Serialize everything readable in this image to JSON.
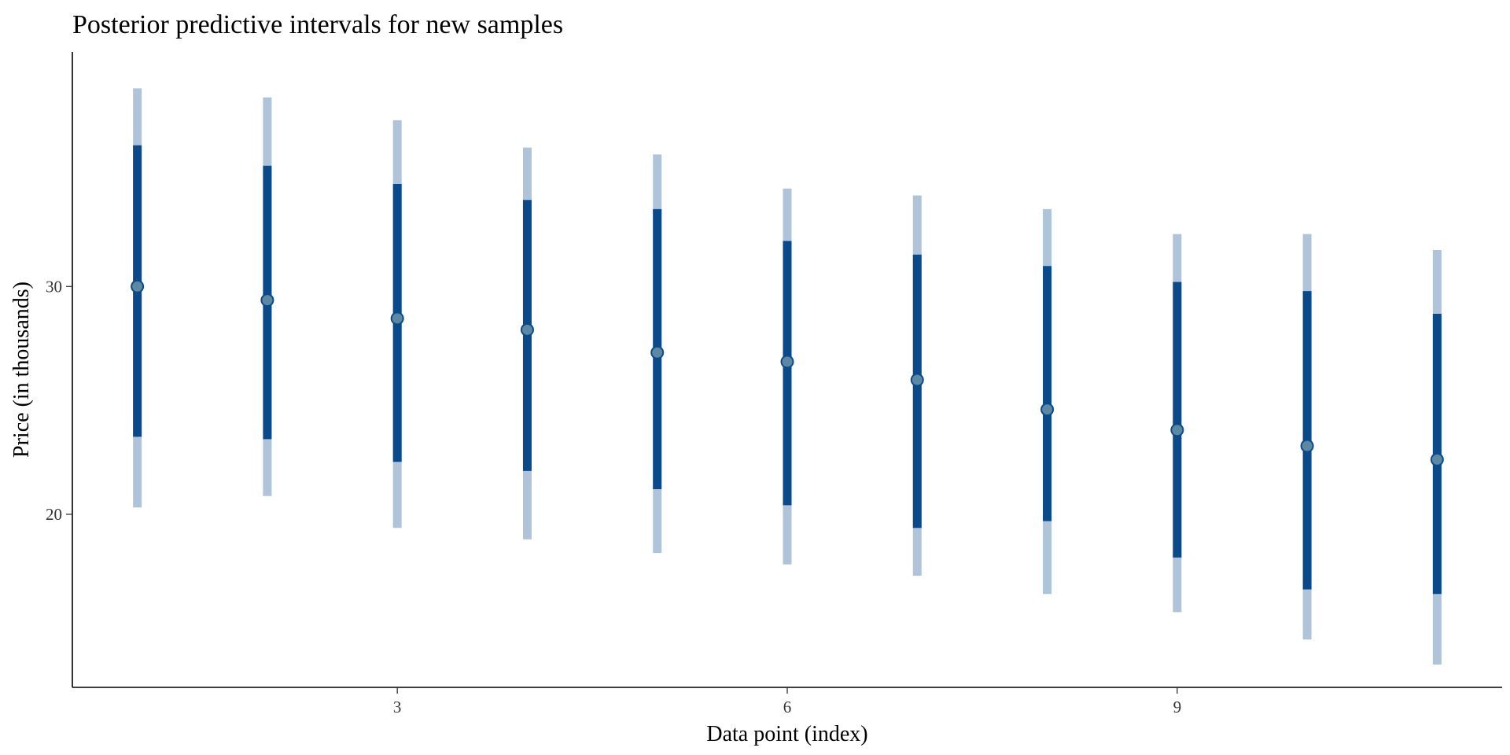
{
  "chart_data": {
    "type": "interval",
    "title": "Posterior predictive intervals for new samples",
    "xlabel": "Data point (index)",
    "ylabel": "Price (in thousands)",
    "xlim": [
      0.5,
      11.5
    ],
    "ylim": [
      12.4,
      40.3
    ],
    "xticks": [
      3,
      6,
      9
    ],
    "yticks": [
      20,
      30
    ],
    "grid": false,
    "colors": {
      "outer_interval": "#b0c4d9",
      "inner_interval": "#0b4a8a",
      "point_fill": "#5d88a3",
      "point_stroke": "#0b4a8a"
    },
    "x": [
      1,
      2,
      3,
      4,
      5,
      6,
      7,
      8,
      9,
      10,
      11
    ],
    "point": [
      30.0,
      29.4,
      28.6,
      28.1,
      27.1,
      26.7,
      25.9,
      24.6,
      23.7,
      23.0,
      22.4
    ],
    "inner_low": [
      23.4,
      23.3,
      22.3,
      21.9,
      21.1,
      20.4,
      19.4,
      19.7,
      18.1,
      16.7,
      16.5
    ],
    "inner_high": [
      36.2,
      35.3,
      34.5,
      33.8,
      33.4,
      32.0,
      31.4,
      30.9,
      30.2,
      29.8,
      28.8
    ],
    "outer_low": [
      20.3,
      20.8,
      19.4,
      18.9,
      18.3,
      17.8,
      17.3,
      16.5,
      15.7,
      14.5,
      13.4
    ],
    "outer_high": [
      38.7,
      38.3,
      37.3,
      36.1,
      35.8,
      34.3,
      34.0,
      33.4,
      32.3,
      32.3,
      31.6
    ]
  }
}
